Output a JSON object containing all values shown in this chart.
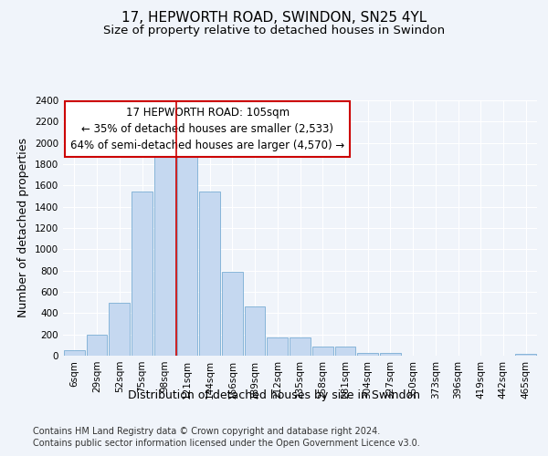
{
  "title_line1": "17, HEPWORTH ROAD, SWINDON, SN25 4YL",
  "title_line2": "Size of property relative to detached houses in Swindon",
  "xlabel": "Distribution of detached houses by size in Swindon",
  "ylabel": "Number of detached properties",
  "bar_labels": [
    "6sqm",
    "29sqm",
    "52sqm",
    "75sqm",
    "98sqm",
    "121sqm",
    "144sqm",
    "166sqm",
    "189sqm",
    "212sqm",
    "235sqm",
    "258sqm",
    "281sqm",
    "304sqm",
    "327sqm",
    "350sqm",
    "373sqm",
    "396sqm",
    "419sqm",
    "442sqm",
    "465sqm"
  ],
  "bar_values": [
    55,
    200,
    500,
    1540,
    1940,
    1940,
    1540,
    790,
    465,
    175,
    175,
    90,
    90,
    30,
    30,
    0,
    0,
    0,
    0,
    0,
    20
  ],
  "bar_color": "#c5d8f0",
  "bar_edge_color": "#7aadd4",
  "vline_color": "#cc0000",
  "annotation_text": "17 HEPWORTH ROAD: 105sqm\n← 35% of detached houses are smaller (2,533)\n64% of semi-detached houses are larger (4,570) →",
  "annotation_box_color": "#cc0000",
  "ylim": [
    0,
    2400
  ],
  "yticks": [
    0,
    200,
    400,
    600,
    800,
    1000,
    1200,
    1400,
    1600,
    1800,
    2000,
    2200,
    2400
  ],
  "background_color": "#f0f4fa",
  "plot_bg_color": "#f0f4fa",
  "footer_line1": "Contains HM Land Registry data © Crown copyright and database right 2024.",
  "footer_line2": "Contains public sector information licensed under the Open Government Licence v3.0.",
  "title_fontsize": 11,
  "subtitle_fontsize": 9.5,
  "axis_label_fontsize": 9,
  "tick_fontsize": 7.5,
  "annotation_fontsize": 8.5,
  "footer_fontsize": 7
}
